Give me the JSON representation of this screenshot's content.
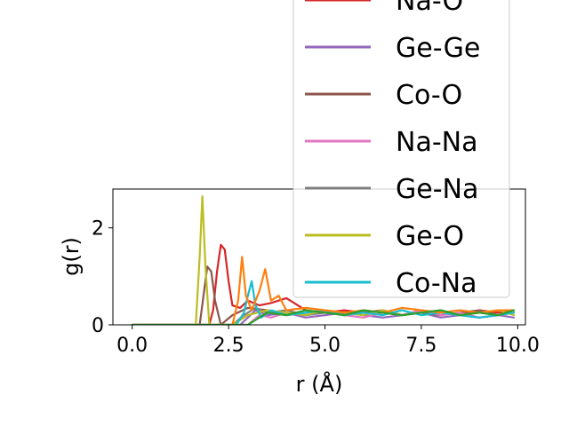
{
  "chart_data": {
    "type": "line",
    "xlabel": "r (Å)",
    "ylabel": "g(r)",
    "xlim": [
      -0.5,
      10.2
    ],
    "ylim": [
      0,
      2.8
    ],
    "x_ticks": [
      {
        "value": 0.0,
        "label": "0.0"
      },
      {
        "value": 2.5,
        "label": "2.5"
      },
      {
        "value": 5.0,
        "label": "5.0"
      },
      {
        "value": 7.5,
        "label": "7.5"
      },
      {
        "value": 10.0,
        "label": "10.0"
      }
    ],
    "y_ticks": [
      {
        "value": 0,
        "label": "0"
      },
      {
        "value": 2,
        "label": "2"
      }
    ],
    "grid": false,
    "legend_placement": "upper-right",
    "series": [
      {
        "name": "Na-O",
        "color": "#d62728",
        "in_legend": true,
        "x": [
          0,
          1.8,
          2.0,
          2.1,
          2.2,
          2.3,
          2.4,
          2.5,
          2.6,
          2.8,
          3.0,
          3.3,
          3.6,
          4.0,
          4.5,
          5.0,
          5.5,
          6.0,
          6.5,
          7.0,
          7.5,
          8.0,
          8.5,
          9.0,
          9.5,
          9.9
        ],
        "y": [
          0,
          0,
          0,
          0.3,
          1.1,
          1.65,
          1.55,
          0.9,
          0.4,
          0.35,
          0.5,
          0.4,
          0.45,
          0.55,
          0.3,
          0.25,
          0.3,
          0.25,
          0.3,
          0.2,
          0.3,
          0.25,
          0.2,
          0.3,
          0.25,
          0.3
        ]
      },
      {
        "name": "Ge-Ge",
        "color": "#9467bd",
        "in_legend": true,
        "x": [
          0,
          2.8,
          3.0,
          3.2,
          3.5,
          4.0,
          4.5,
          5.0,
          5.5,
          6.0,
          6.5,
          7.0,
          7.5,
          8.0,
          8.5,
          9.0,
          9.5,
          9.9
        ],
        "y": [
          0,
          0,
          0.15,
          0.3,
          0.2,
          0.25,
          0.15,
          0.2,
          0.25,
          0.2,
          0.15,
          0.2,
          0.25,
          0.15,
          0.2,
          0.15,
          0.2,
          0.15
        ]
      },
      {
        "name": "Co-O",
        "color": "#8c564b",
        "in_legend": true,
        "x": [
          0,
          1.75,
          1.85,
          1.95,
          2.05,
          2.15,
          2.3,
          2.6,
          3.0,
          3.5,
          4.0,
          4.5,
          5.0,
          5.5,
          6.0,
          6.5,
          7.0,
          7.5,
          8.0,
          8.5,
          9.0,
          9.5,
          9.9
        ],
        "y": [
          0,
          0,
          0.6,
          1.2,
          1.1,
          0.5,
          0,
          0.2,
          0.35,
          0.3,
          0.2,
          0.25,
          0.3,
          0.2,
          0.25,
          0.3,
          0.2,
          0.25,
          0.2,
          0.25,
          0.3,
          0.2,
          0.25
        ]
      },
      {
        "name": "Na-Na",
        "color": "#e377c2",
        "in_legend": true,
        "x": [
          0,
          3.0,
          3.3,
          3.6,
          4.0,
          4.5,
          5.0,
          5.5,
          6.0,
          6.5,
          7.0,
          7.5,
          8.0,
          8.5,
          9.0,
          9.5,
          9.9
        ],
        "y": [
          0,
          0,
          0.2,
          0.15,
          0.25,
          0.2,
          0.3,
          0.2,
          0.15,
          0.25,
          0.2,
          0.3,
          0.2,
          0.25,
          0.15,
          0.2,
          0.25
        ]
      },
      {
        "name": "Ge-Na",
        "color": "#7f7f7f",
        "in_legend": true,
        "x": [
          0,
          2.6,
          2.9,
          3.2,
          3.5,
          4.0,
          4.5,
          5.0,
          5.5,
          6.0,
          6.5,
          7.0,
          7.5,
          8.0,
          8.5,
          9.0,
          9.5,
          9.9
        ],
        "y": [
          0,
          0,
          0.2,
          0.35,
          0.25,
          0.3,
          0.2,
          0.25,
          0.2,
          0.3,
          0.25,
          0.2,
          0.25,
          0.3,
          0.2,
          0.25,
          0.2,
          0.25
        ]
      },
      {
        "name": "Ge-O",
        "color": "#bcbd22",
        "in_legend": true,
        "x": [
          0,
          1.65,
          1.75,
          1.82,
          1.9,
          2.0,
          2.6,
          3.0,
          3.5,
          4.0,
          4.5,
          5.0,
          5.5,
          6.0,
          6.5,
          7.0,
          7.5,
          8.0,
          8.5,
          9.0,
          9.5,
          9.9
        ],
        "y": [
          0,
          0,
          1.4,
          2.65,
          1.2,
          0,
          0,
          0.2,
          0.3,
          0.25,
          0.2,
          0.3,
          0.25,
          0.2,
          0.3,
          0.2,
          0.25,
          0.3,
          0.2,
          0.25,
          0.3,
          0.2
        ]
      },
      {
        "name": "Co-Na",
        "color": "#17becf",
        "in_legend": true,
        "x": [
          0,
          2.7,
          2.9,
          3.0,
          3.1,
          3.2,
          3.35,
          3.6,
          4.0,
          4.5,
          5.0,
          5.5,
          6.0,
          6.5,
          7.0,
          7.5,
          8.0,
          8.5,
          9.0,
          9.5,
          9.9
        ],
        "y": [
          0,
          0,
          0.25,
          0.6,
          0.9,
          0.4,
          0.15,
          0.3,
          0.2,
          0.25,
          0.3,
          0.2,
          0.25,
          0.2,
          0.3,
          0.2,
          0.25,
          0.2,
          0.15,
          0.2,
          0.25
        ]
      },
      {
        "name": "",
        "color": "#ff7f0e",
        "in_legend": false,
        "x": [
          0,
          2.6,
          2.75,
          2.85,
          2.95,
          3.1,
          3.3,
          3.45,
          3.6,
          3.8,
          4.0,
          4.5,
          5.0,
          5.5,
          6.0,
          6.5,
          7.0,
          7.5,
          8.0,
          8.5,
          9.0,
          9.5,
          9.9
        ],
        "y": [
          0,
          0,
          0.5,
          1.4,
          0.6,
          0.3,
          0.7,
          1.15,
          0.5,
          0.6,
          0.3,
          0.35,
          0.3,
          0.25,
          0.3,
          0.25,
          0.35,
          0.3,
          0.25,
          0.3,
          0.25,
          0.3,
          0.3
        ]
      },
      {
        "name": "",
        "color": "#2ca02c",
        "in_legend": false,
        "x": [
          0,
          3.0,
          3.5,
          4.0,
          4.5,
          5.0,
          5.5,
          6.0,
          6.5,
          7.0,
          7.5,
          8.0,
          8.5,
          9.0,
          9.5,
          9.9
        ],
        "y": [
          0,
          0,
          0.25,
          0.2,
          0.3,
          0.25,
          0.2,
          0.3,
          0.25,
          0.2,
          0.25,
          0.3,
          0.2,
          0.25,
          0.2,
          0.3
        ]
      }
    ]
  }
}
